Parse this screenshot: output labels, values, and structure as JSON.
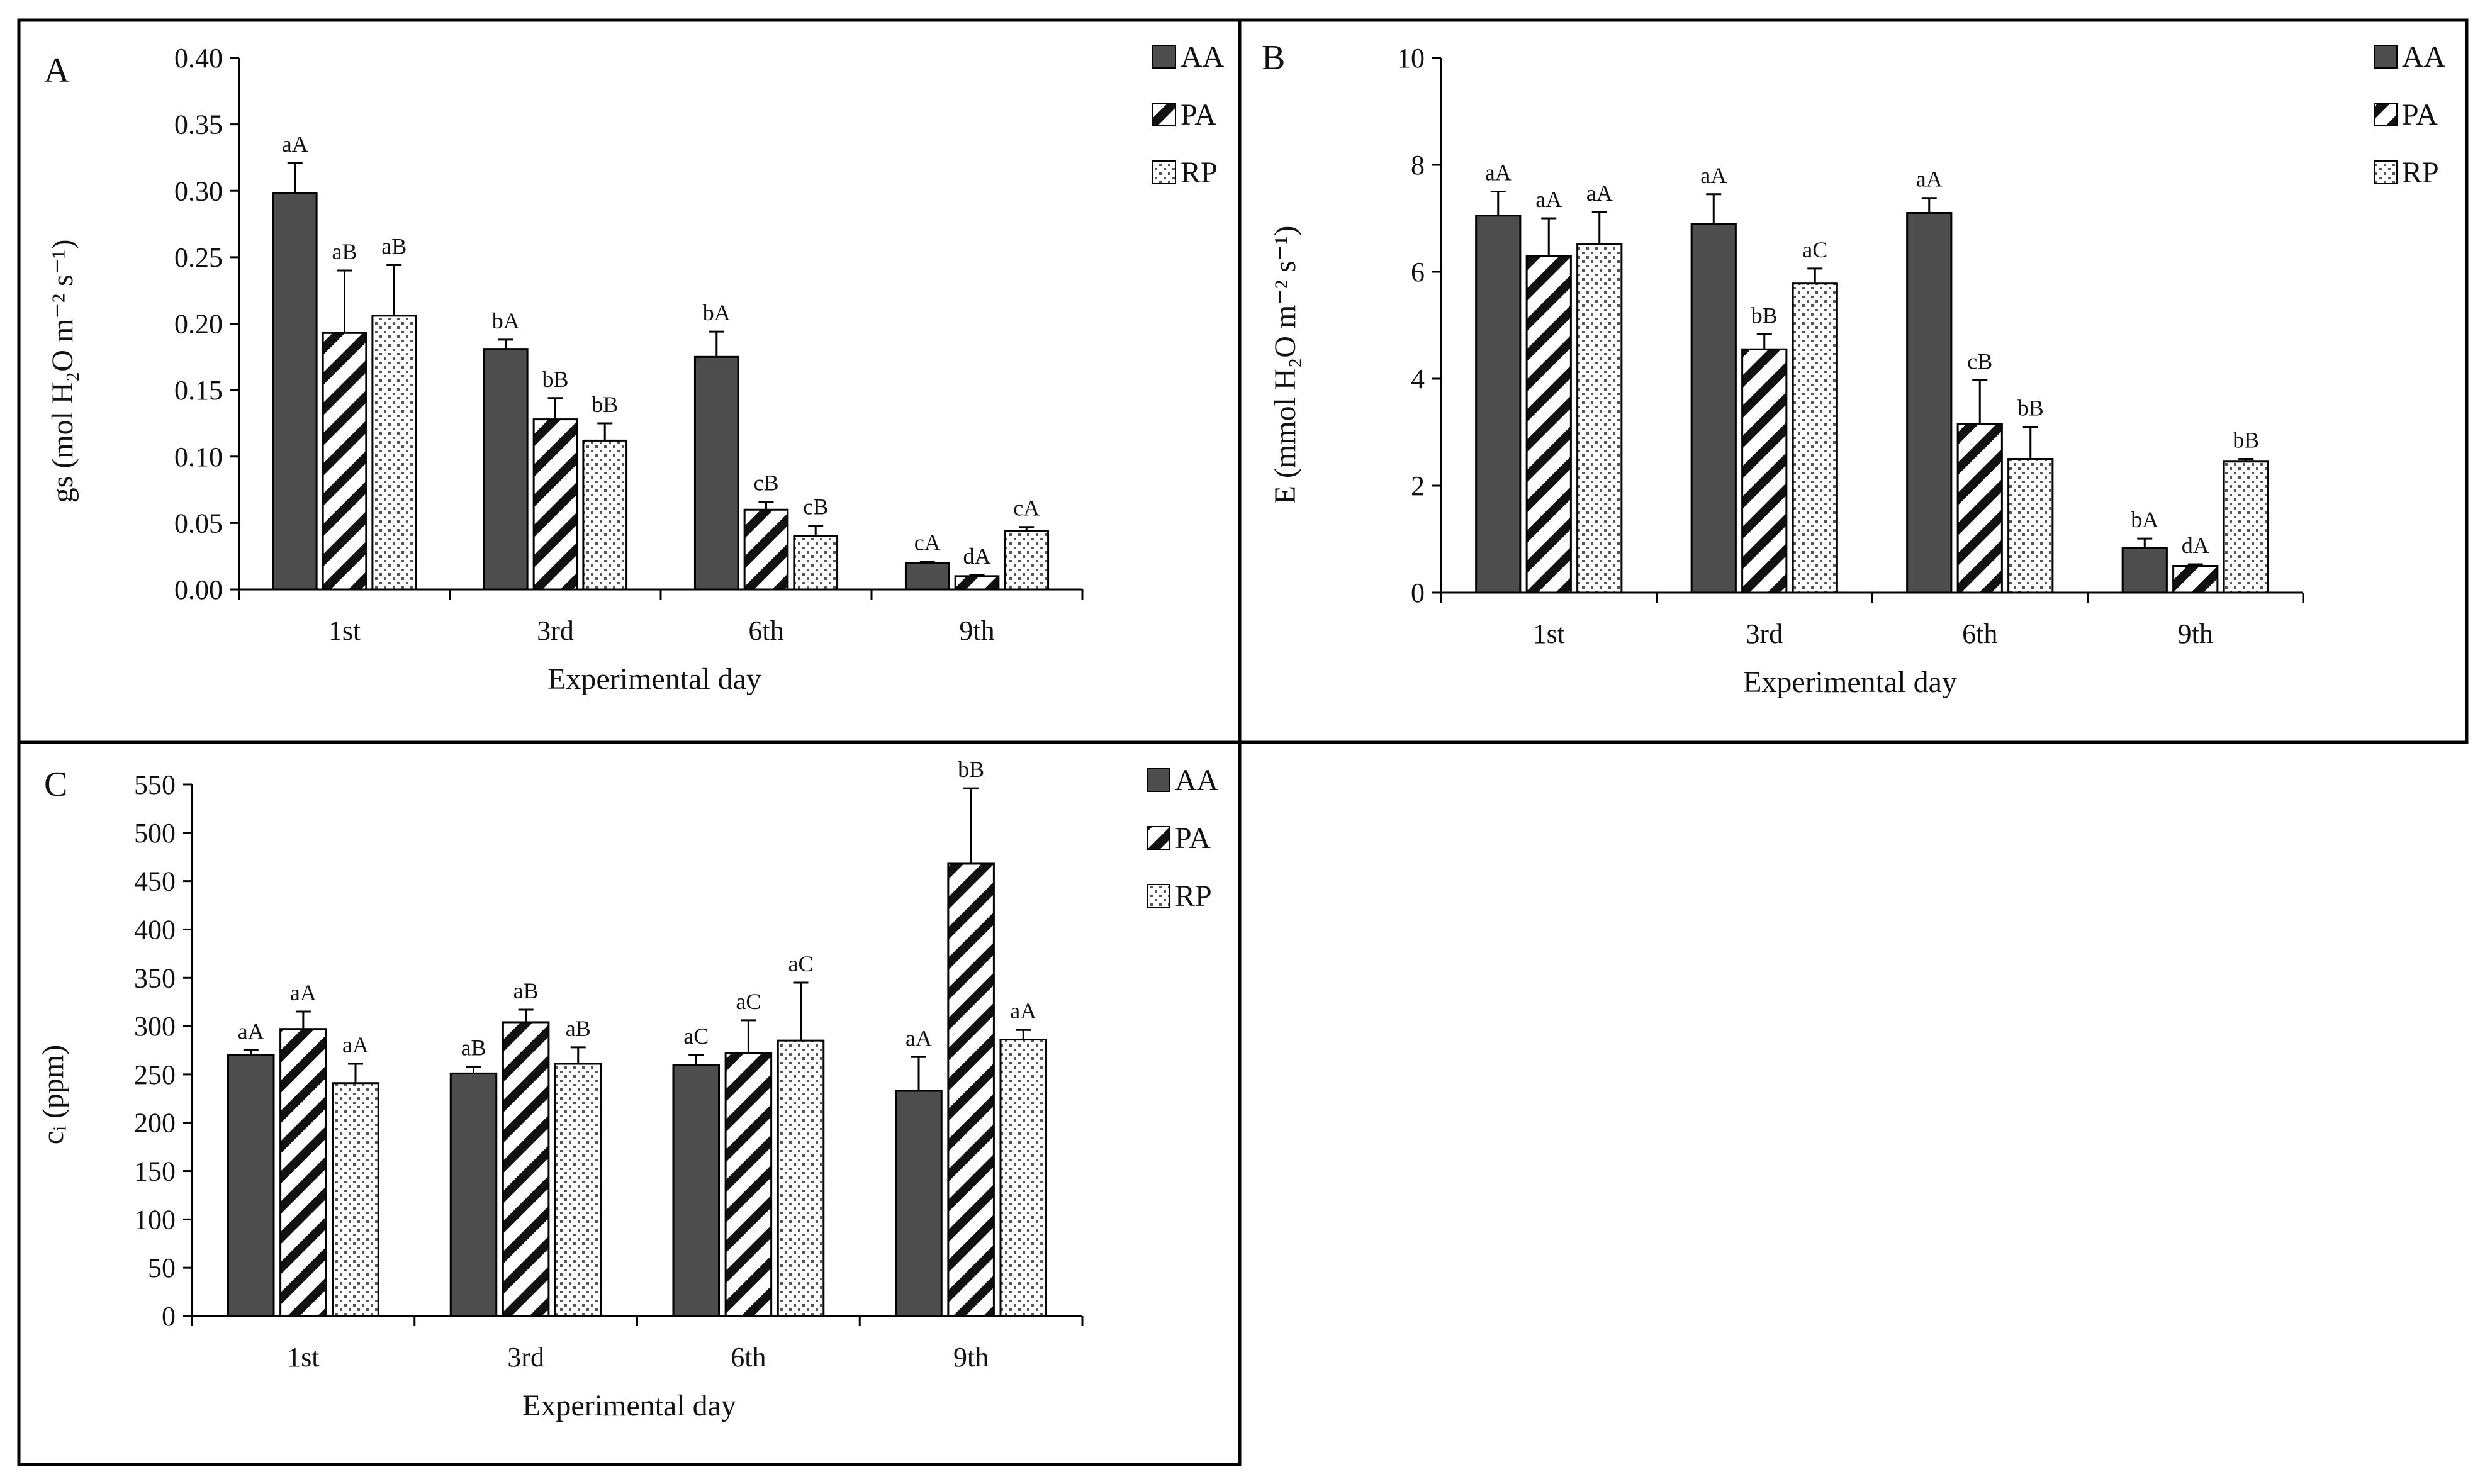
{
  "figure": {
    "panels": [
      {
        "id": "A",
        "label": "A",
        "ylabel": "gs (mol H₂O m⁻² s⁻¹)",
        "xlabel": "Experimental day",
        "ylim": [
          0,
          0.4
        ],
        "ytick_step": 0.05,
        "ytick_labels": [
          "0.00",
          "0.05",
          "0.10",
          "0.15",
          "0.20",
          "0.25",
          "0.30",
          "0.35",
          "0.40"
        ]
      },
      {
        "id": "B",
        "label": "B",
        "ylabel": "E (mmol H₂O m⁻² s⁻¹)",
        "xlabel": "Experimental day",
        "ylim": [
          0,
          10
        ],
        "ytick_step": 2,
        "ytick_labels": [
          "0",
          "2",
          "4",
          "6",
          "8",
          "10"
        ]
      },
      {
        "id": "C",
        "label": "C",
        "ylabel": "cᵢ (ppm)",
        "xlabel": "Experimental day",
        "ylim": [
          0,
          550
        ],
        "ytick_step": 50,
        "ytick_labels": [
          "0",
          "50",
          "100",
          "150",
          "200",
          "250",
          "300",
          "350",
          "400",
          "450",
          "500",
          "550"
        ]
      }
    ]
  },
  "legend": {
    "entries": [
      {
        "name": "AA",
        "pattern": "solid",
        "color": "#4d4d4d"
      },
      {
        "name": "PA",
        "pattern": "diagonal-hatch",
        "color": "#111111"
      },
      {
        "name": "RP",
        "pattern": "dots",
        "color": "#555555"
      }
    ]
  },
  "chart_data": [
    {
      "type": "bar",
      "panel": "A",
      "title": "",
      "xlabel": "Experimental day",
      "ylabel": "gs (mol H₂O m⁻² s⁻¹)",
      "ylim": [
        0,
        0.4
      ],
      "categories": [
        "1st",
        "3rd",
        "6th",
        "9th"
      ],
      "series": [
        {
          "name": "AA",
          "values": [
            0.298,
            0.181,
            0.175,
            0.02
          ],
          "errors": [
            0.023,
            0.007,
            0.019,
            0.001
          ],
          "letters": [
            "aA",
            "bA",
            "bA",
            "cA"
          ]
        },
        {
          "name": "PA",
          "values": [
            0.193,
            0.128,
            0.06,
            0.01
          ],
          "errors": [
            0.047,
            0.016,
            0.006,
            0.001
          ],
          "letters": [
            "aB",
            "bB",
            "cB",
            "dA"
          ]
        },
        {
          "name": "RP",
          "values": [
            0.206,
            0.112,
            0.04,
            0.044
          ],
          "errors": [
            0.038,
            0.013,
            0.008,
            0.003
          ],
          "letters": [
            "aB",
            "bB",
            "cB",
            "cA"
          ]
        }
      ]
    },
    {
      "type": "bar",
      "panel": "B",
      "title": "",
      "xlabel": "Experimental day",
      "ylabel": "E (mmol H₂O m⁻² s⁻¹)",
      "ylim": [
        0,
        10
      ],
      "categories": [
        "1st",
        "3rd",
        "6th",
        "9th"
      ],
      "series": [
        {
          "name": "AA",
          "values": [
            7.05,
            6.9,
            7.1,
            0.83
          ],
          "errors": [
            0.45,
            0.55,
            0.28,
            0.18
          ],
          "letters": [
            "aA",
            "aA",
            "aA",
            "bA"
          ]
        },
        {
          "name": "PA",
          "values": [
            6.3,
            4.55,
            3.15,
            0.5
          ],
          "errors": [
            0.7,
            0.28,
            0.82,
            0.03
          ],
          "letters": [
            "aA",
            "bB",
            "cB",
            "dA"
          ]
        },
        {
          "name": "RP",
          "values": [
            6.52,
            5.78,
            2.5,
            2.45
          ],
          "errors": [
            0.6,
            0.28,
            0.6,
            0.05
          ],
          "letters": [
            "aA",
            "aC",
            "bB",
            "bB"
          ]
        }
      ]
    },
    {
      "type": "bar",
      "panel": "C",
      "title": "",
      "xlabel": "Experimental day",
      "ylabel": "cᵢ (ppm)",
      "ylim": [
        0,
        550
      ],
      "categories": [
        "1st",
        "3rd",
        "6th",
        "9th"
      ],
      "series": [
        {
          "name": "AA",
          "values": [
            270,
            251,
            260,
            233
          ],
          "errors": [
            5,
            7,
            10,
            35
          ],
          "letters": [
            "aA",
            "aB",
            "aC",
            "aA"
          ]
        },
        {
          "name": "PA",
          "values": [
            297,
            304,
            272,
            468
          ],
          "errors": [
            18,
            13,
            34,
            78
          ],
          "letters": [
            "aA",
            "aB",
            "aC",
            "bB"
          ]
        },
        {
          "name": "RP",
          "values": [
            241,
            261,
            285,
            286
          ],
          "errors": [
            20,
            17,
            60,
            10
          ],
          "letters": [
            "aA",
            "aB",
            "aC",
            "aA"
          ]
        }
      ]
    }
  ]
}
